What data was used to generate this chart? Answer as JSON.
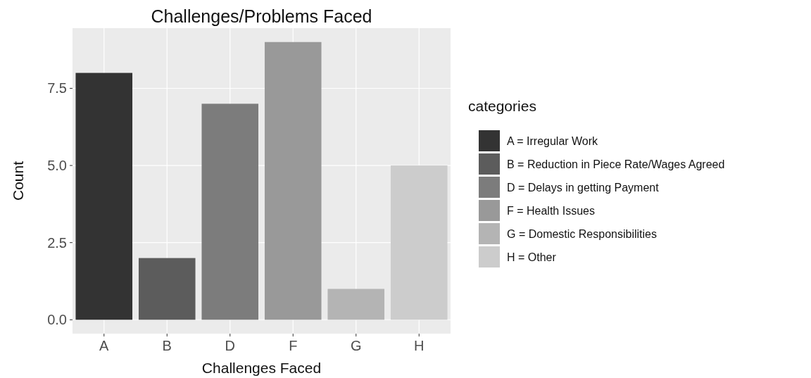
{
  "chart_data": {
    "type": "bar",
    "title": "Challenges/Problems Faced",
    "xlabel": "Challenges Faced",
    "ylabel": "Count",
    "legend_title": "categories",
    "categories": [
      "A",
      "B",
      "D",
      "F",
      "G",
      "H"
    ],
    "stacked": true,
    "ylim": [
      -0.45,
      9.45
    ],
    "yticks": [
      {
        "value": 0,
        "label": "0.0"
      },
      2.5,
      {
        "value": 5,
        "label": "5.0"
      },
      7.5
    ],
    "grid": true,
    "legend": "right",
    "series": [
      {
        "name": "A = Irregular Work",
        "color": "#333333",
        "values": [
          8,
          null,
          null,
          null,
          null,
          null
        ]
      },
      {
        "name": "B = Reduction in Piece Rate/Wages Agreed",
        "color": "#5c5c5c",
        "values": [
          null,
          2,
          null,
          null,
          null,
          null
        ]
      },
      {
        "name": "D = Delays in getting Payment",
        "color": "#7c7c7c",
        "values": [
          null,
          null,
          7,
          null,
          null,
          null
        ]
      },
      {
        "name": "F = Health Issues",
        "color": "#999999",
        "values": [
          null,
          null,
          null,
          9,
          null,
          null
        ]
      },
      {
        "name": "G = Domestic Responsibilities",
        "color": "#b4b4b4",
        "values": [
          null,
          null,
          null,
          null,
          1,
          null
        ]
      },
      {
        "name": "H = Other",
        "color": "#cccccc",
        "values": [
          null,
          null,
          null,
          null,
          null,
          5
        ]
      }
    ]
  }
}
